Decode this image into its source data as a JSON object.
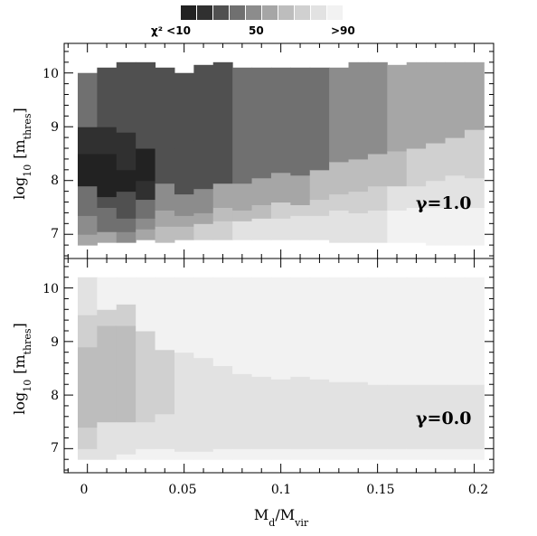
{
  "chart_data": {
    "type": "heatmap",
    "colorbar": {
      "labels": [
        "χ² <10",
        "50",
        ">90"
      ],
      "levels": [
        "#222222",
        "#303030",
        "#505050",
        "#707070",
        "#8c8c8c",
        "#a6a6a6",
        "#bdbdbd",
        "#d0d0d0",
        "#e2e2e2",
        "#f2f2f2"
      ]
    },
    "x_axis": {
      "label": "M_d/M_vir",
      "label_main": "M",
      "label_sub1": "d",
      "label_slash": "/M",
      "label_sub2": "vir",
      "ticks": [
        0,
        0.05,
        0.1,
        0.15,
        0.2
      ],
      "tick_labels": [
        "0",
        "0.05",
        "0.1",
        "0.15",
        "0.2"
      ],
      "range": [
        -0.012,
        0.21
      ]
    },
    "y_axis": {
      "label_prefix": "log",
      "label_sub": "10",
      "label_main": "[m",
      "label_sub2": "thres",
      "label_close": "]",
      "ticks": [
        7,
        8,
        9,
        10
      ],
      "tick_labels": [
        "7",
        "8",
        "9",
        "10"
      ],
      "range": [
        6.55,
        10.55
      ]
    },
    "x_cells": [
      0.0,
      0.01,
      0.02,
      0.03,
      0.04,
      0.05,
      0.06,
      0.07,
      0.08,
      0.09,
      0.1,
      0.11,
      0.12,
      0.13,
      0.14,
      0.15,
      0.16,
      0.17,
      0.18,
      0.19,
      0.2
    ],
    "panels": [
      {
        "name": "γ=1.0",
        "label": "γ=1.0",
        "boundaries": [
          [
            6.8,
            7.0,
            7.35,
            7.9,
            8.5,
            9.0,
            10.0
          ],
          [
            6.85,
            7.05,
            7.5,
            7.7,
            8.5,
            9.0,
            10.1
          ],
          [
            6.85,
            7.05,
            7.3,
            7.8,
            8.2,
            8.9,
            10.2
          ],
          [
            6.9,
            7.1,
            7.3,
            7.65,
            8.0,
            8.6,
            10.2
          ],
          [
            6.85,
            7.15,
            7.45,
            7.95,
            8.8,
            10.1
          ],
          [
            6.9,
            7.15,
            7.35,
            7.75,
            8.6,
            10.0
          ],
          [
            6.9,
            7.2,
            7.4,
            7.85,
            8.75,
            10.15
          ],
          [
            6.9,
            7.25,
            7.5,
            7.95,
            10.2
          ],
          [
            6.9,
            7.25,
            7.45,
            7.95,
            10.1
          ],
          [
            6.9,
            7.3,
            7.55,
            8.05,
            10.1
          ],
          [
            6.9,
            7.3,
            7.6,
            8.15,
            10.1
          ],
          [
            6.9,
            7.35,
            7.55,
            8.1,
            10.1
          ],
          [
            6.9,
            7.35,
            7.65,
            8.2,
            10.1
          ],
          [
            6.85,
            7.45,
            7.75,
            8.35,
            10.1
          ],
          [
            6.85,
            7.4,
            7.8,
            8.4,
            10.2
          ],
          [
            6.85,
            7.45,
            7.9,
            8.5,
            10.2
          ],
          [
            6.85,
            7.45,
            7.9,
            8.55,
            10.15
          ],
          [
            6.85,
            7.5,
            7.9,
            8.6,
            10.2
          ],
          [
            6.8,
            7.5,
            8.0,
            8.7,
            10.2
          ],
          [
            6.8,
            7.5,
            8.1,
            8.8,
            10.2
          ],
          [
            6.8,
            7.5,
            8.05,
            8.95,
            10.2
          ]
        ],
        "levels": [
          [
            5,
            4,
            3,
            0,
            1,
            3
          ],
          [
            5,
            3,
            2,
            0,
            1,
            2
          ],
          [
            4,
            3,
            2,
            0,
            1,
            2
          ],
          [
            5,
            4,
            3,
            1,
            0,
            2
          ],
          [
            6,
            5,
            4,
            2,
            2
          ],
          [
            6,
            5,
            4,
            2,
            2
          ],
          [
            7,
            5,
            4,
            2,
            2
          ],
          [
            7,
            6,
            5,
            2
          ],
          [
            8,
            6,
            5,
            3
          ],
          [
            8,
            6,
            5,
            3
          ],
          [
            8,
            7,
            5,
            3
          ],
          [
            8,
            7,
            5,
            3
          ],
          [
            8,
            7,
            6,
            3
          ],
          [
            8,
            7,
            6,
            4
          ],
          [
            8,
            7,
            6,
            4
          ],
          [
            8,
            7,
            6,
            4
          ],
          [
            9,
            8,
            6,
            5
          ],
          [
            9,
            8,
            7,
            5
          ],
          [
            9,
            8,
            7,
            5
          ],
          [
            9,
            8,
            7,
            5
          ],
          [
            9,
            8,
            7,
            5
          ]
        ]
      },
      {
        "name": "γ=0.0",
        "label": "γ=0.0",
        "boundaries": [
          [
            6.8,
            7.0,
            7.4,
            8.9,
            9.5,
            10.2
          ],
          [
            6.8,
            7.0,
            7.5,
            9.3,
            9.6,
            10.2
          ],
          [
            6.8,
            6.9,
            7.5,
            9.3,
            9.7,
            10.2
          ],
          [
            6.8,
            7.0,
            7.5,
            9.2,
            10.2
          ],
          [
            6.8,
            7.0,
            7.65,
            8.85,
            10.2
          ],
          [
            6.8,
            6.95,
            8.8,
            10.2
          ],
          [
            6.8,
            6.95,
            8.7,
            10.2
          ],
          [
            6.8,
            7.0,
            8.55,
            10.2
          ],
          [
            6.8,
            7.0,
            8.4,
            10.2
          ],
          [
            6.8,
            7.0,
            8.35,
            10.2
          ],
          [
            6.8,
            7.0,
            8.3,
            10.2
          ],
          [
            6.8,
            7.0,
            8.35,
            10.2
          ],
          [
            6.8,
            7.0,
            8.3,
            10.2
          ],
          [
            6.8,
            7.0,
            8.25,
            10.2
          ],
          [
            6.8,
            7.0,
            8.25,
            10.2
          ],
          [
            6.8,
            7.0,
            8.2,
            10.2
          ],
          [
            6.8,
            7.0,
            8.2,
            10.2
          ],
          [
            6.8,
            7.0,
            8.2,
            10.2
          ],
          [
            6.8,
            7.0,
            8.2,
            10.2
          ],
          [
            6.8,
            7.0,
            8.2,
            10.2
          ],
          [
            6.8,
            7.0,
            8.2,
            10.2
          ]
        ],
        "levels": [
          [
            8,
            7,
            6,
            7,
            8
          ],
          [
            8,
            8,
            6,
            7,
            9
          ],
          [
            9,
            8,
            6,
            7,
            9
          ],
          [
            9,
            8,
            7,
            9
          ],
          [
            9,
            8,
            7,
            9
          ],
          [
            9,
            8,
            9
          ],
          [
            9,
            8,
            9
          ],
          [
            9,
            8,
            9
          ],
          [
            9,
            8,
            9
          ],
          [
            9,
            8,
            9
          ],
          [
            9,
            8,
            9
          ],
          [
            9,
            8,
            9
          ],
          [
            9,
            8,
            9
          ],
          [
            9,
            8,
            9
          ],
          [
            9,
            8,
            9
          ],
          [
            9,
            8,
            9
          ],
          [
            9,
            8,
            9
          ],
          [
            9,
            8,
            9
          ],
          [
            9,
            8,
            9
          ],
          [
            9,
            8,
            9
          ],
          [
            9,
            8,
            9
          ]
        ]
      }
    ]
  }
}
